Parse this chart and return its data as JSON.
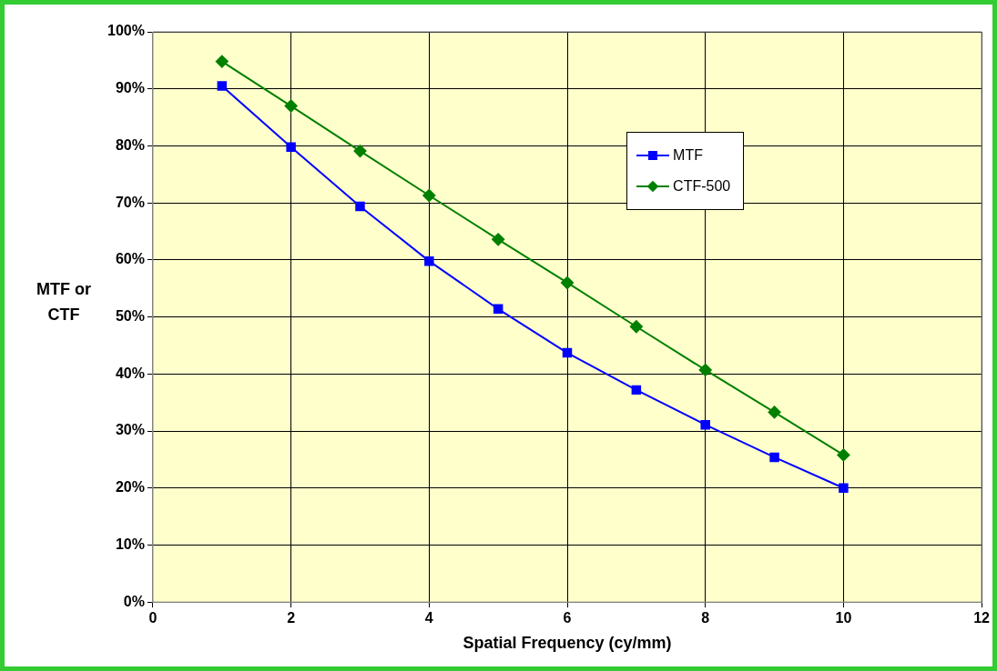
{
  "chart_data": {
    "type": "line",
    "xlabel": "Spatial Frequency (cy/mm)",
    "ylabel": "MTF or CTF",
    "x": [
      1,
      2,
      3,
      4,
      5,
      6,
      7,
      8,
      9,
      10
    ],
    "series": [
      {
        "name": "MTF",
        "color": "#0000ff",
        "marker": "square",
        "values": [
          90.5,
          79.8,
          69.4,
          59.8,
          51.4,
          43.7,
          37.2,
          31.1,
          25.4,
          20
        ]
      },
      {
        "name": "CTF-500",
        "color": "#008000",
        "marker": "diamond",
        "values": [
          94.8,
          87,
          79.1,
          71.3,
          63.6,
          56,
          48.3,
          40.7,
          33.3,
          25.8
        ]
      }
    ],
    "xlim": [
      0,
      12
    ],
    "xticks": [
      0,
      2,
      4,
      6,
      8,
      10,
      12
    ],
    "ylim": [
      0,
      100
    ],
    "yticks": [
      {
        "value": 0,
        "label": "0%"
      },
      {
        "value": 10,
        "label": "10%"
      },
      {
        "value": 20,
        "label": "20%"
      },
      {
        "value": 30,
        "label": "30%"
      },
      {
        "value": 40,
        "label": "40%"
      },
      {
        "value": 50,
        "label": "50%"
      },
      {
        "value": 60,
        "label": "60%"
      },
      {
        "value": 70,
        "label": "70%"
      },
      {
        "value": 80,
        "label": "80%"
      },
      {
        "value": 90,
        "label": "90%"
      },
      {
        "value": 100,
        "label": "100%"
      }
    ],
    "grid": true,
    "legend": "top right",
    "line_style": "solid"
  }
}
